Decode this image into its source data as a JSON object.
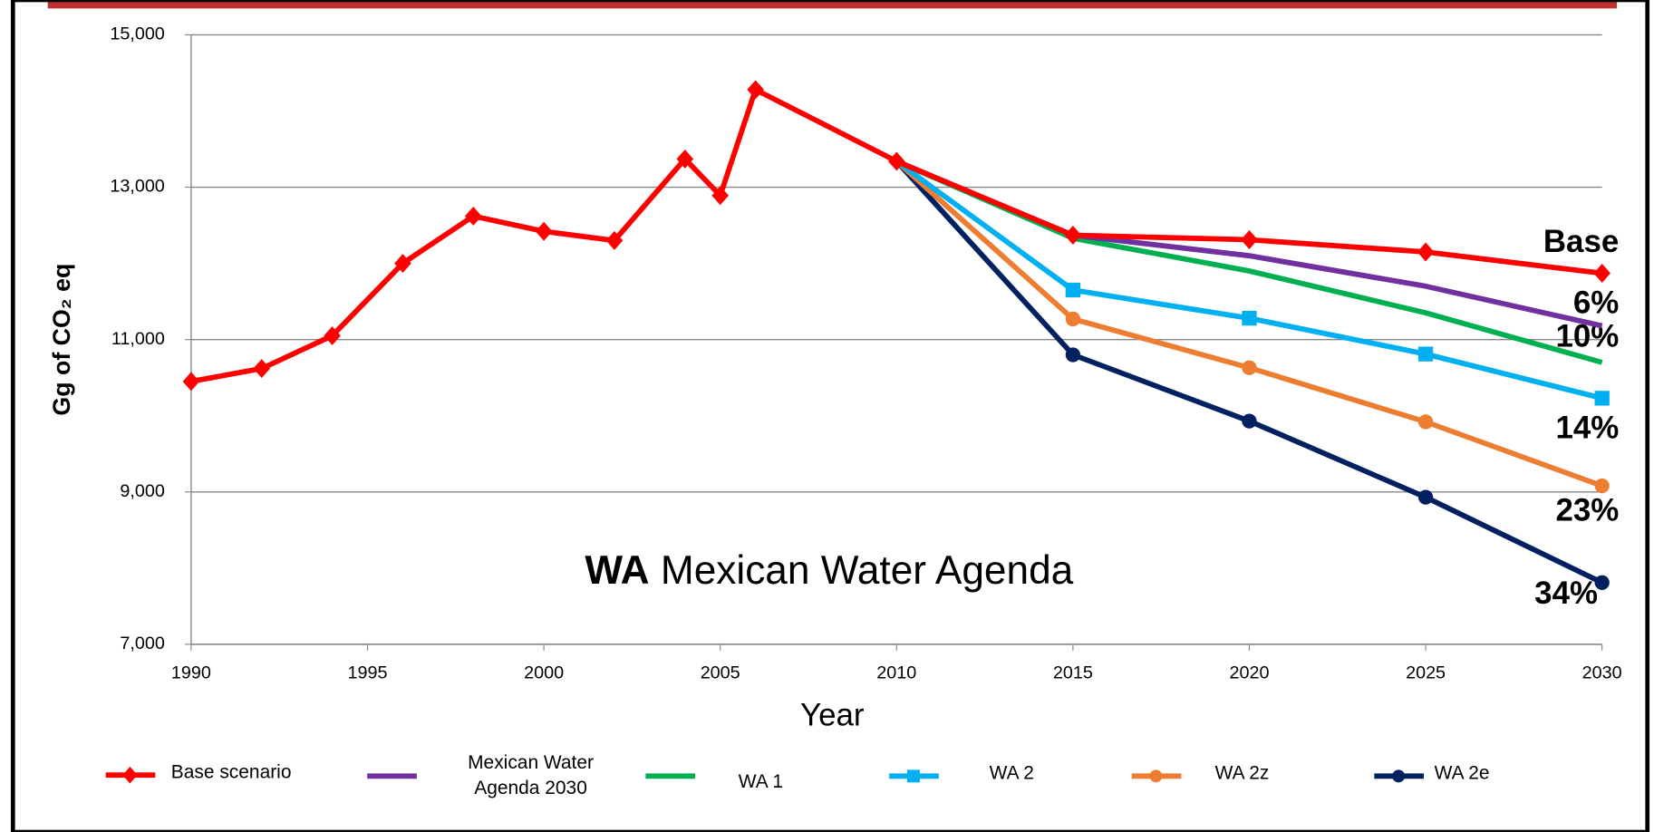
{
  "chart_data": {
    "type": "line",
    "inset_label": {
      "bold": "WA",
      "text": "Mexican Water Agenda"
    },
    "xlabel": "Year",
    "ylabel": "Gg of CO₂ eq",
    "x": [
      1990,
      1992,
      1994,
      1996,
      1998,
      2000,
      2002,
      2004,
      2005,
      2006,
      2010,
      2015,
      2020,
      2025,
      2030
    ],
    "xlim": [
      1990,
      2030
    ],
    "xticks": [
      1990,
      1995,
      2000,
      2005,
      2010,
      2015,
      2020,
      2025,
      2030
    ],
    "ylim": [
      7000,
      15000
    ],
    "yticks": [
      {
        "value": 7000,
        "label": "7,000"
      },
      {
        "value": 9000,
        "label": "9,000"
      },
      {
        "value": 11000,
        "label": "11,000"
      },
      {
        "value": 13000,
        "label": "13,000"
      },
      {
        "value": 15000,
        "label": "15,000"
      }
    ],
    "grid": true,
    "series": [
      {
        "name": "Base scenario",
        "color": "#ff0000",
        "marker": "diamond",
        "end_label": "Base",
        "values": [
          10450,
          10620,
          11050,
          12000,
          12620,
          12420,
          12300,
          13370,
          12890,
          14280,
          13340,
          12370,
          12310,
          12150,
          11870
        ]
      },
      {
        "name": "Mexican Water Agenda 2030",
        "color": "#7030a0",
        "marker": "none",
        "end_label": "6%",
        "values": [
          null,
          null,
          null,
          null,
          null,
          null,
          null,
          null,
          null,
          null,
          13340,
          12370,
          12100,
          11700,
          11180
        ]
      },
      {
        "name": "WA 1",
        "color": "#00b050",
        "marker": "none",
        "end_label": "10%",
        "values": [
          null,
          null,
          null,
          null,
          null,
          null,
          null,
          null,
          null,
          null,
          13340,
          12330,
          11900,
          11350,
          10700
        ]
      },
      {
        "name": "WA 2",
        "color": "#00b0f0",
        "marker": "square",
        "end_label": "14%",
        "values": [
          null,
          null,
          null,
          null,
          null,
          null,
          null,
          null,
          null,
          null,
          13340,
          11650,
          11280,
          10810,
          10230
        ]
      },
      {
        "name": "WA 2z",
        "color": "#ed7d31",
        "marker": "circle",
        "end_label": "23%",
        "values": [
          null,
          null,
          null,
          null,
          null,
          null,
          null,
          null,
          null,
          null,
          13340,
          11270,
          10630,
          9920,
          9080
        ]
      },
      {
        "name": "WA 2e",
        "color": "#002060",
        "marker": "circle",
        "end_label": "34%",
        "values": [
          null,
          null,
          null,
          null,
          null,
          null,
          null,
          null,
          null,
          null,
          13340,
          10800,
          9930,
          8930,
          7810
        ]
      }
    ]
  }
}
